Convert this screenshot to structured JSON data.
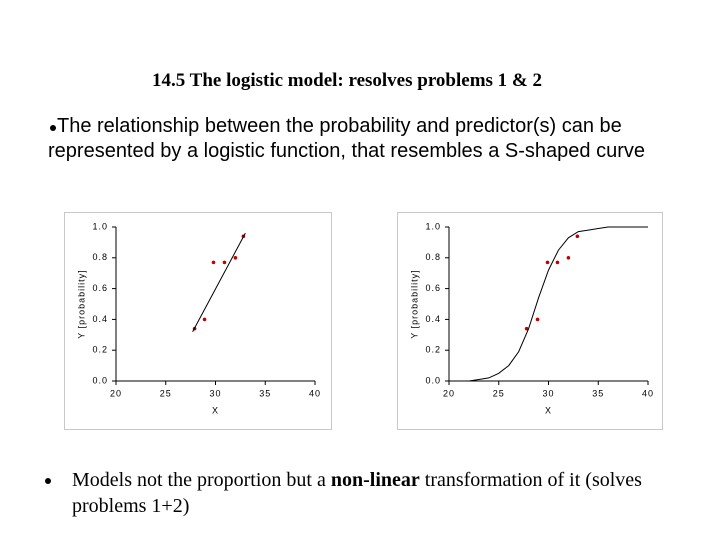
{
  "title": "14.5 The logistic model: resolves problems 1 & 2",
  "bullets": [
    {
      "text": "The relationship between the probability and predictor(s) can be represented by a logistic  function, that resembles a S-shaped curve"
    },
    {
      "parts": [
        "Models not the proportion but a ",
        "non-linear",
        " transformation of it  (solves problems 1+2)"
      ]
    }
  ],
  "chart_data": [
    {
      "type": "scatter",
      "xlabel": "X",
      "ylabel": "Y [probability]",
      "xlim": [
        20,
        40
      ],
      "ylim": [
        0,
        1
      ],
      "xticks": [
        20,
        25,
        30,
        35,
        40
      ],
      "yticks": [
        {
          "value": 0,
          "label": "0.0"
        },
        0.2,
        0.4,
        0.6,
        0.8,
        {
          "value": 1,
          "label": "1.0"
        }
      ],
      "series": [
        {
          "mode": "markers",
          "color": "#c00000",
          "x": [
            27.9,
            28.9,
            29.8,
            30.9,
            32.0,
            32.8
          ],
          "values": [
            0.34,
            0.4,
            0.77,
            0.77,
            0.8,
            0.94
          ]
        },
        {
          "mode": "line",
          "color": "#000000",
          "x": [
            27.7,
            33.0
          ],
          "values": [
            0.32,
            0.96
          ]
        }
      ]
    },
    {
      "type": "scatter",
      "xlabel": "X",
      "ylabel": "Y [probability]",
      "xlim": [
        20,
        40
      ],
      "ylim": [
        0,
        1
      ],
      "xticks": [
        20,
        25,
        30,
        35,
        40
      ],
      "yticks": [
        {
          "value": 0,
          "label": "0.0"
        },
        0.2,
        0.4,
        0.6,
        0.8,
        {
          "value": 1,
          "label": "1.0"
        }
      ],
      "series": [
        {
          "mode": "markers",
          "color": "#c00000",
          "x": [
            27.8,
            28.9,
            29.9,
            30.9,
            32.0,
            32.9
          ],
          "values": [
            0.34,
            0.4,
            0.77,
            0.77,
            0.8,
            0.94
          ]
        },
        {
          "mode": "line",
          "color": "#000000",
          "x": [
            20,
            21,
            22,
            23,
            24,
            25,
            26,
            27,
            28,
            29,
            30,
            31,
            32,
            33,
            34,
            35,
            36,
            37,
            38,
            39,
            40
          ],
          "values": [
            0.0,
            0.0,
            0.0,
            0.01,
            0.02,
            0.05,
            0.1,
            0.19,
            0.34,
            0.54,
            0.72,
            0.85,
            0.93,
            0.97,
            0.98,
            0.99,
            1.0,
            1.0,
            1.0,
            1.0,
            1.0
          ]
        }
      ]
    }
  ]
}
